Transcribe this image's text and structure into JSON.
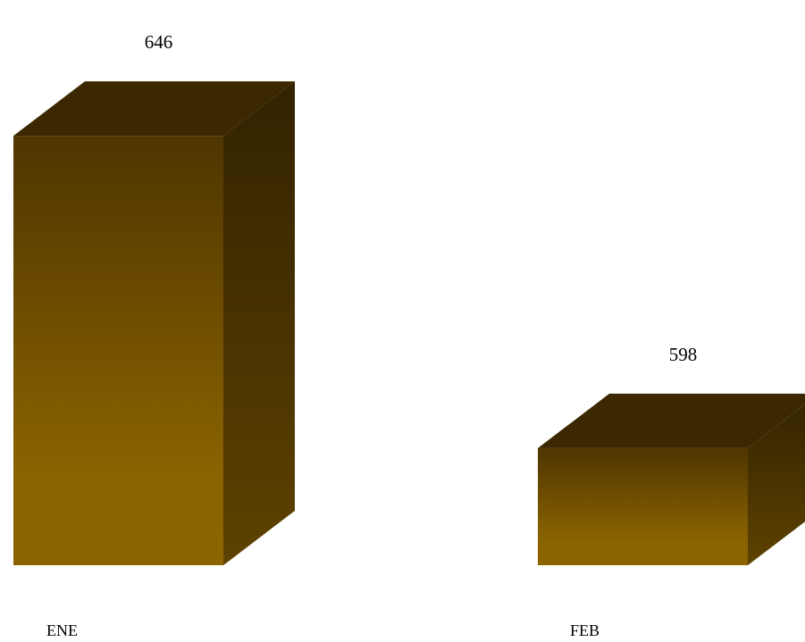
{
  "chart_data": {
    "type": "bar",
    "style": "3d-box",
    "categories": [
      "ENE",
      "FEB"
    ],
    "values": [
      646,
      598
    ],
    "value_labels": [
      "646",
      "598"
    ],
    "ylim": [
      580,
      650
    ],
    "grid": false,
    "legend": "none",
    "colors": {
      "front_bottom": "#8b6400",
      "front_top": "#4f3500",
      "top_face": "#3b2800",
      "side_dark": "#322200",
      "side_light": "#5e4200"
    }
  }
}
